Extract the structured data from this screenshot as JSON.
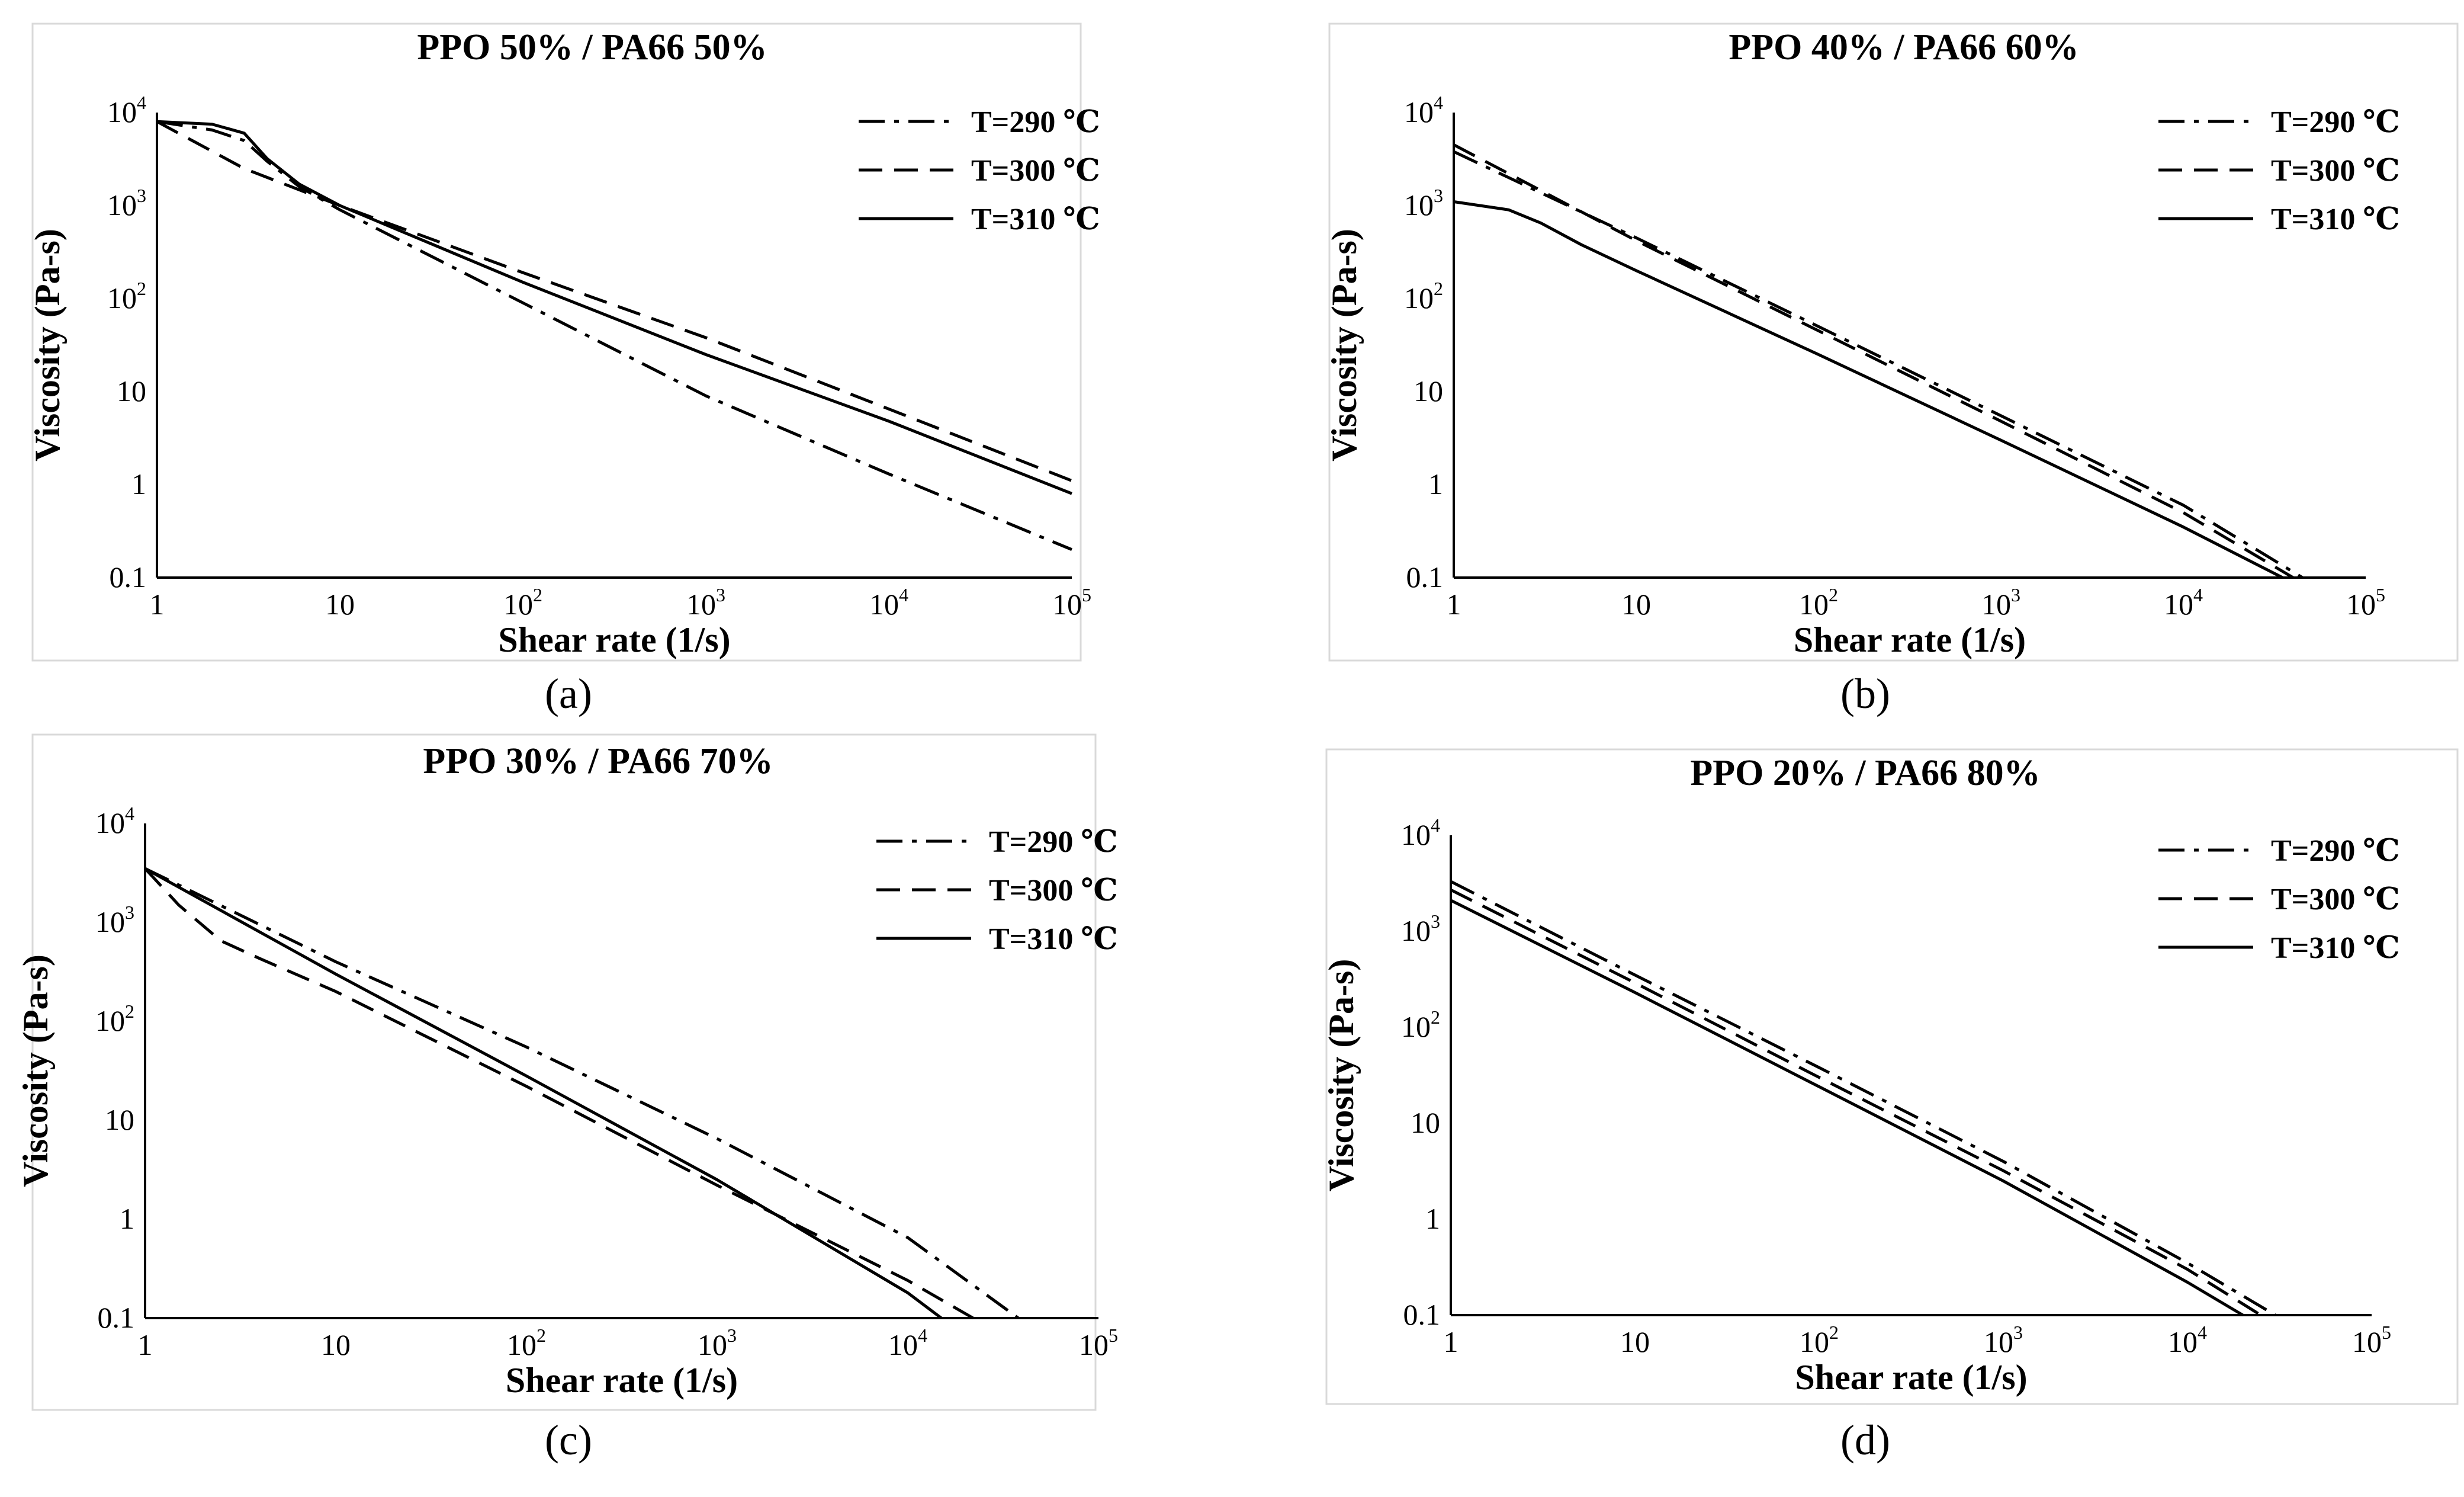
{
  "figure": {
    "captions": [
      "(a)",
      "(b)",
      "(c)",
      "(d)"
    ],
    "legend_labels": [
      "T=290 ℃",
      "T=300 ℃",
      "T=310 ℃"
    ],
    "line_styles": [
      "dashdot",
      "dashed",
      "solid"
    ],
    "line_color": "#000000",
    "frame_color": "#d9d9d9"
  },
  "chart_data": [
    {
      "type": "line",
      "title": "PPO 50%  / PA66 50%",
      "xlabel": "Shear rate (1/s)",
      "ylabel": "Viscosity (Pa-s)",
      "xscale": "log",
      "yscale": "log",
      "xlim": [
        1,
        100000
      ],
      "ylim": [
        0.1,
        10000
      ],
      "xticks": [
        {
          "base": "1",
          "exp": ""
        },
        {
          "base": "10",
          "exp": ""
        },
        {
          "base": "10",
          "exp": "2"
        },
        {
          "base": "10",
          "exp": "3"
        },
        {
          "base": "10",
          "exp": "4"
        },
        {
          "base": "10",
          "exp": "5"
        }
      ],
      "yticks": [
        {
          "base": "0.1",
          "exp": ""
        },
        {
          "base": "1",
          "exp": ""
        },
        {
          "base": "10",
          "exp": ""
        },
        {
          "base": "10",
          "exp": "2"
        },
        {
          "base": "10",
          "exp": "3"
        },
        {
          "base": "10",
          "exp": "4"
        }
      ],
      "legend_position": "top-right",
      "series": [
        {
          "name": "T=290 ℃",
          "style": "dashdot",
          "x": [
            1,
            2,
            3,
            4,
            6,
            10,
            100,
            1000,
            10000,
            100000
          ],
          "y": [
            8000,
            6500,
            5000,
            3000,
            1600,
            900,
            90,
            9,
            1.3,
            0.2
          ]
        },
        {
          "name": "T=300 ℃",
          "style": "dashed",
          "x": [
            1,
            3,
            10,
            100,
            1000,
            10000,
            100000
          ],
          "y": [
            8000,
            2500,
            1000,
            190,
            38,
            6.5,
            1.1
          ]
        },
        {
          "name": "T=310 ℃",
          "style": "solid",
          "x": [
            1,
            2,
            3,
            4,
            6,
            10,
            100,
            1000,
            10000,
            100000
          ],
          "y": [
            8000,
            7500,
            6000,
            3200,
            1700,
            1000,
            150,
            25,
            4.8,
            0.8
          ]
        }
      ]
    },
    {
      "type": "line",
      "title": "PPO 40%  / PA66 60%",
      "xlabel": "Shear rate (1/s)",
      "ylabel": "Viscosity (Pa-s)",
      "xscale": "log",
      "yscale": "log",
      "xlim": [
        1,
        100000
      ],
      "ylim": [
        0.1,
        10000
      ],
      "xticks": [
        {
          "base": "1",
          "exp": ""
        },
        {
          "base": "10",
          "exp": ""
        },
        {
          "base": "10",
          "exp": "2"
        },
        {
          "base": "10",
          "exp": "3"
        },
        {
          "base": "10",
          "exp": "4"
        },
        {
          "base": "10",
          "exp": "5"
        }
      ],
      "yticks": [
        {
          "base": "0.1",
          "exp": ""
        },
        {
          "base": "1",
          "exp": ""
        },
        {
          "base": "10",
          "exp": ""
        },
        {
          "base": "10",
          "exp": "2"
        },
        {
          "base": "10",
          "exp": "3"
        },
        {
          "base": "10",
          "exp": "4"
        }
      ],
      "legend_position": "top-right",
      "series": [
        {
          "name": "T=290 ℃",
          "style": "dashdot",
          "x": [
            1,
            10,
            100,
            1000,
            10000,
            45000
          ],
          "y": [
            3800,
            450,
            50,
            5.5,
            0.6,
            0.1
          ]
        },
        {
          "name": "T=300 ℃",
          "style": "dashed",
          "x": [
            1,
            10,
            100,
            1000,
            10000,
            40000
          ],
          "y": [
            4500,
            420,
            45,
            4.8,
            0.5,
            0.1
          ]
        },
        {
          "name": "T=310 ℃",
          "style": "solid",
          "x": [
            1,
            2,
            3,
            5,
            10,
            100,
            1000,
            10000,
            35000
          ],
          "y": [
            1100,
            900,
            650,
            380,
            200,
            25,
            3,
            0.35,
            0.1
          ]
        }
      ]
    },
    {
      "type": "line",
      "title": "PPO 30%  / PA66 70%",
      "xlabel": "Shear rate (1/s)",
      "ylabel": "Viscosity (Pa-s)",
      "xscale": "log",
      "yscale": "log",
      "xlim": [
        1,
        100000
      ],
      "ylim": [
        0.1,
        10000
      ],
      "xticks": [
        {
          "base": "1",
          "exp": ""
        },
        {
          "base": "10",
          "exp": ""
        },
        {
          "base": "10",
          "exp": "2"
        },
        {
          "base": "10",
          "exp": "3"
        },
        {
          "base": "10",
          "exp": "4"
        },
        {
          "base": "10",
          "exp": "5"
        }
      ],
      "yticks": [
        {
          "base": "0.1",
          "exp": ""
        },
        {
          "base": "1",
          "exp": ""
        },
        {
          "base": "10",
          "exp": ""
        },
        {
          "base": "10",
          "exp": "2"
        },
        {
          "base": "10",
          "exp": "3"
        },
        {
          "base": "10",
          "exp": "4"
        }
      ],
      "legend_position": "top-right",
      "series": [
        {
          "name": "T=290 ℃",
          "style": "dashdot",
          "x": [
            1,
            10,
            100,
            1000,
            10000,
            38000
          ],
          "y": [
            3500,
            400,
            55,
            6.5,
            0.65,
            0.1
          ]
        },
        {
          "name": "T=300 ℃",
          "style": "dashed",
          "x": [
            1,
            1.5,
            2.5,
            4,
            10,
            100,
            1000,
            10000,
            22000
          ],
          "y": [
            3500,
            1500,
            650,
            430,
            200,
            22,
            2.2,
            0.24,
            0.1
          ]
        },
        {
          "name": "T=310 ℃",
          "style": "solid",
          "x": [
            1,
            10,
            100,
            1000,
            10000,
            15000
          ],
          "y": [
            3500,
            300,
            28,
            2.5,
            0.18,
            0.1
          ]
        }
      ]
    },
    {
      "type": "line",
      "title": "PPO 20%  / PA66 80%",
      "xlabel": "Shear rate (1/s)",
      "ylabel": "Viscosity (Pa-s)",
      "xscale": "log",
      "yscale": "log",
      "xlim": [
        1,
        100000
      ],
      "ylim": [
        0.1,
        10000
      ],
      "xticks": [
        {
          "base": "1",
          "exp": ""
        },
        {
          "base": "10",
          "exp": ""
        },
        {
          "base": "10",
          "exp": "2"
        },
        {
          "base": "10",
          "exp": "3"
        },
        {
          "base": "10",
          "exp": "4"
        },
        {
          "base": "10",
          "exp": "5"
        }
      ],
      "yticks": [
        {
          "base": "0.1",
          "exp": ""
        },
        {
          "base": "1",
          "exp": ""
        },
        {
          "base": "10",
          "exp": ""
        },
        {
          "base": "10",
          "exp": "2"
        },
        {
          "base": "10",
          "exp": "3"
        },
        {
          "base": "10",
          "exp": "4"
        }
      ],
      "legend_position": "top-right",
      "series": [
        {
          "name": "T=290 ℃",
          "style": "dashdot",
          "x": [
            1,
            10,
            100,
            1000,
            10000,
            30000
          ],
          "y": [
            3300,
            350,
            38,
            4,
            0.35,
            0.1
          ]
        },
        {
          "name": "T=300 ℃",
          "style": "dashed",
          "x": [
            1,
            10,
            100,
            1000,
            10000,
            25000
          ],
          "y": [
            2700,
            290,
            30,
            3.2,
            0.3,
            0.1
          ]
        },
        {
          "name": "T=310 ℃",
          "style": "solid",
          "x": [
            1,
            10,
            100,
            1000,
            10000,
            20000
          ],
          "y": [
            2100,
            230,
            24,
            2.5,
            0.22,
            0.1
          ]
        }
      ]
    }
  ]
}
